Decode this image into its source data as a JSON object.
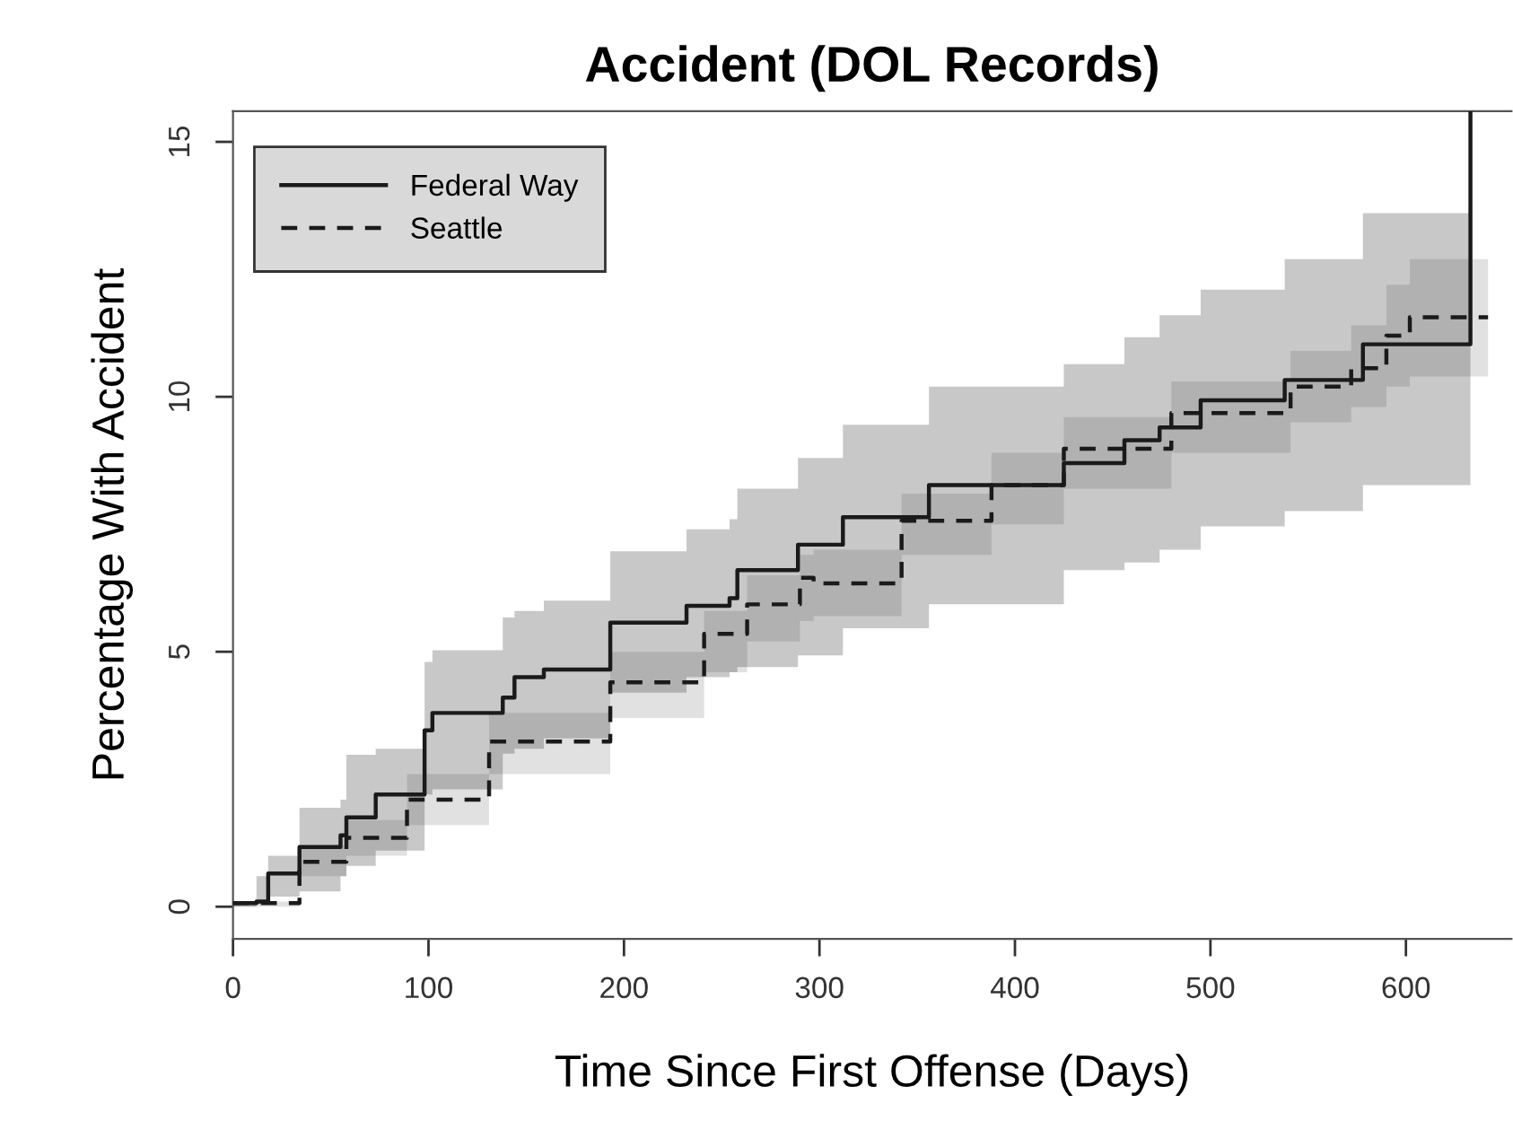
{
  "chart_data": {
    "type": "step",
    "title": "Accident (DOL Records)",
    "xlabel": "Time Since First Offense (Days)",
    "ylabel": "Percentage With Accident",
    "xlim": [
      0,
      654
    ],
    "ylim": [
      -0.63,
      15.6
    ],
    "xticks": [
      0,
      100,
      200,
      300,
      400,
      500,
      600
    ],
    "yticks": [
      0,
      5,
      10,
      15
    ],
    "grid": false,
    "legend": "top left",
    "series": [
      {
        "name": "Federal Way",
        "color": "#1a1a1a",
        "line_style": "solid",
        "x": [
          0,
          12,
          18,
          34,
          55,
          58,
          73,
          98,
          102,
          138,
          144,
          159,
          193,
          232,
          254,
          258,
          289,
          312,
          356,
          425,
          456,
          474,
          495,
          538,
          578,
          633
        ],
        "values": [
          0.07,
          0.1,
          0.65,
          1.17,
          1.4,
          1.75,
          2.2,
          3.46,
          3.8,
          4.1,
          4.5,
          4.65,
          5.57,
          5.9,
          6.05,
          6.6,
          7.1,
          7.64,
          8.27,
          8.7,
          9.15,
          9.4,
          9.93,
          10.33,
          11.03,
          15.6
        ],
        "upper": [
          0.1,
          0.6,
          1.0,
          1.94,
          2.1,
          2.98,
          3.1,
          4.8,
          5.03,
          5.67,
          5.8,
          6.0,
          6.97,
          7.4,
          7.6,
          8.2,
          8.8,
          9.45,
          10.2,
          10.64,
          11.17,
          11.6,
          12.1,
          12.7,
          13.6,
          13.6
        ],
        "lower": [
          0,
          0.05,
          0.2,
          0.3,
          0.6,
          0.8,
          1.1,
          2.2,
          2.3,
          3.0,
          3.1,
          3.3,
          4.2,
          4.5,
          4.6,
          4.7,
          4.93,
          5.46,
          5.93,
          6.6,
          6.75,
          7.0,
          7.46,
          7.76,
          8.27,
          8.27
        ]
      },
      {
        "name": "Seattle",
        "color": "#1a1a1a",
        "line_style": "dashed",
        "x": [
          0,
          34,
          58,
          89,
          131,
          193,
          241,
          263,
          290,
          297,
          342,
          388,
          425,
          480,
          541,
          572,
          590,
          602,
          642
        ],
        "values": [
          0.07,
          0.88,
          1.35,
          2.1,
          3.24,
          4.4,
          5.35,
          5.93,
          6.45,
          6.34,
          7.57,
          8.27,
          8.98,
          9.68,
          10.2,
          10.56,
          11.2,
          11.56,
          11.56
        ],
        "upper": [
          0.1,
          1.2,
          1.7,
          2.6,
          3.8,
          5.0,
          5.8,
          6.5,
          6.9,
          7.0,
          8.1,
          8.9,
          9.6,
          10.3,
          10.9,
          11.4,
          12.2,
          12.7,
          12.7
        ],
        "lower": [
          0,
          0.6,
          1.0,
          1.6,
          2.6,
          3.7,
          4.6,
          5.2,
          5.6,
          5.7,
          6.9,
          7.5,
          8.2,
          8.9,
          9.5,
          9.8,
          10.2,
          10.4,
          10.4
        ]
      }
    ]
  }
}
